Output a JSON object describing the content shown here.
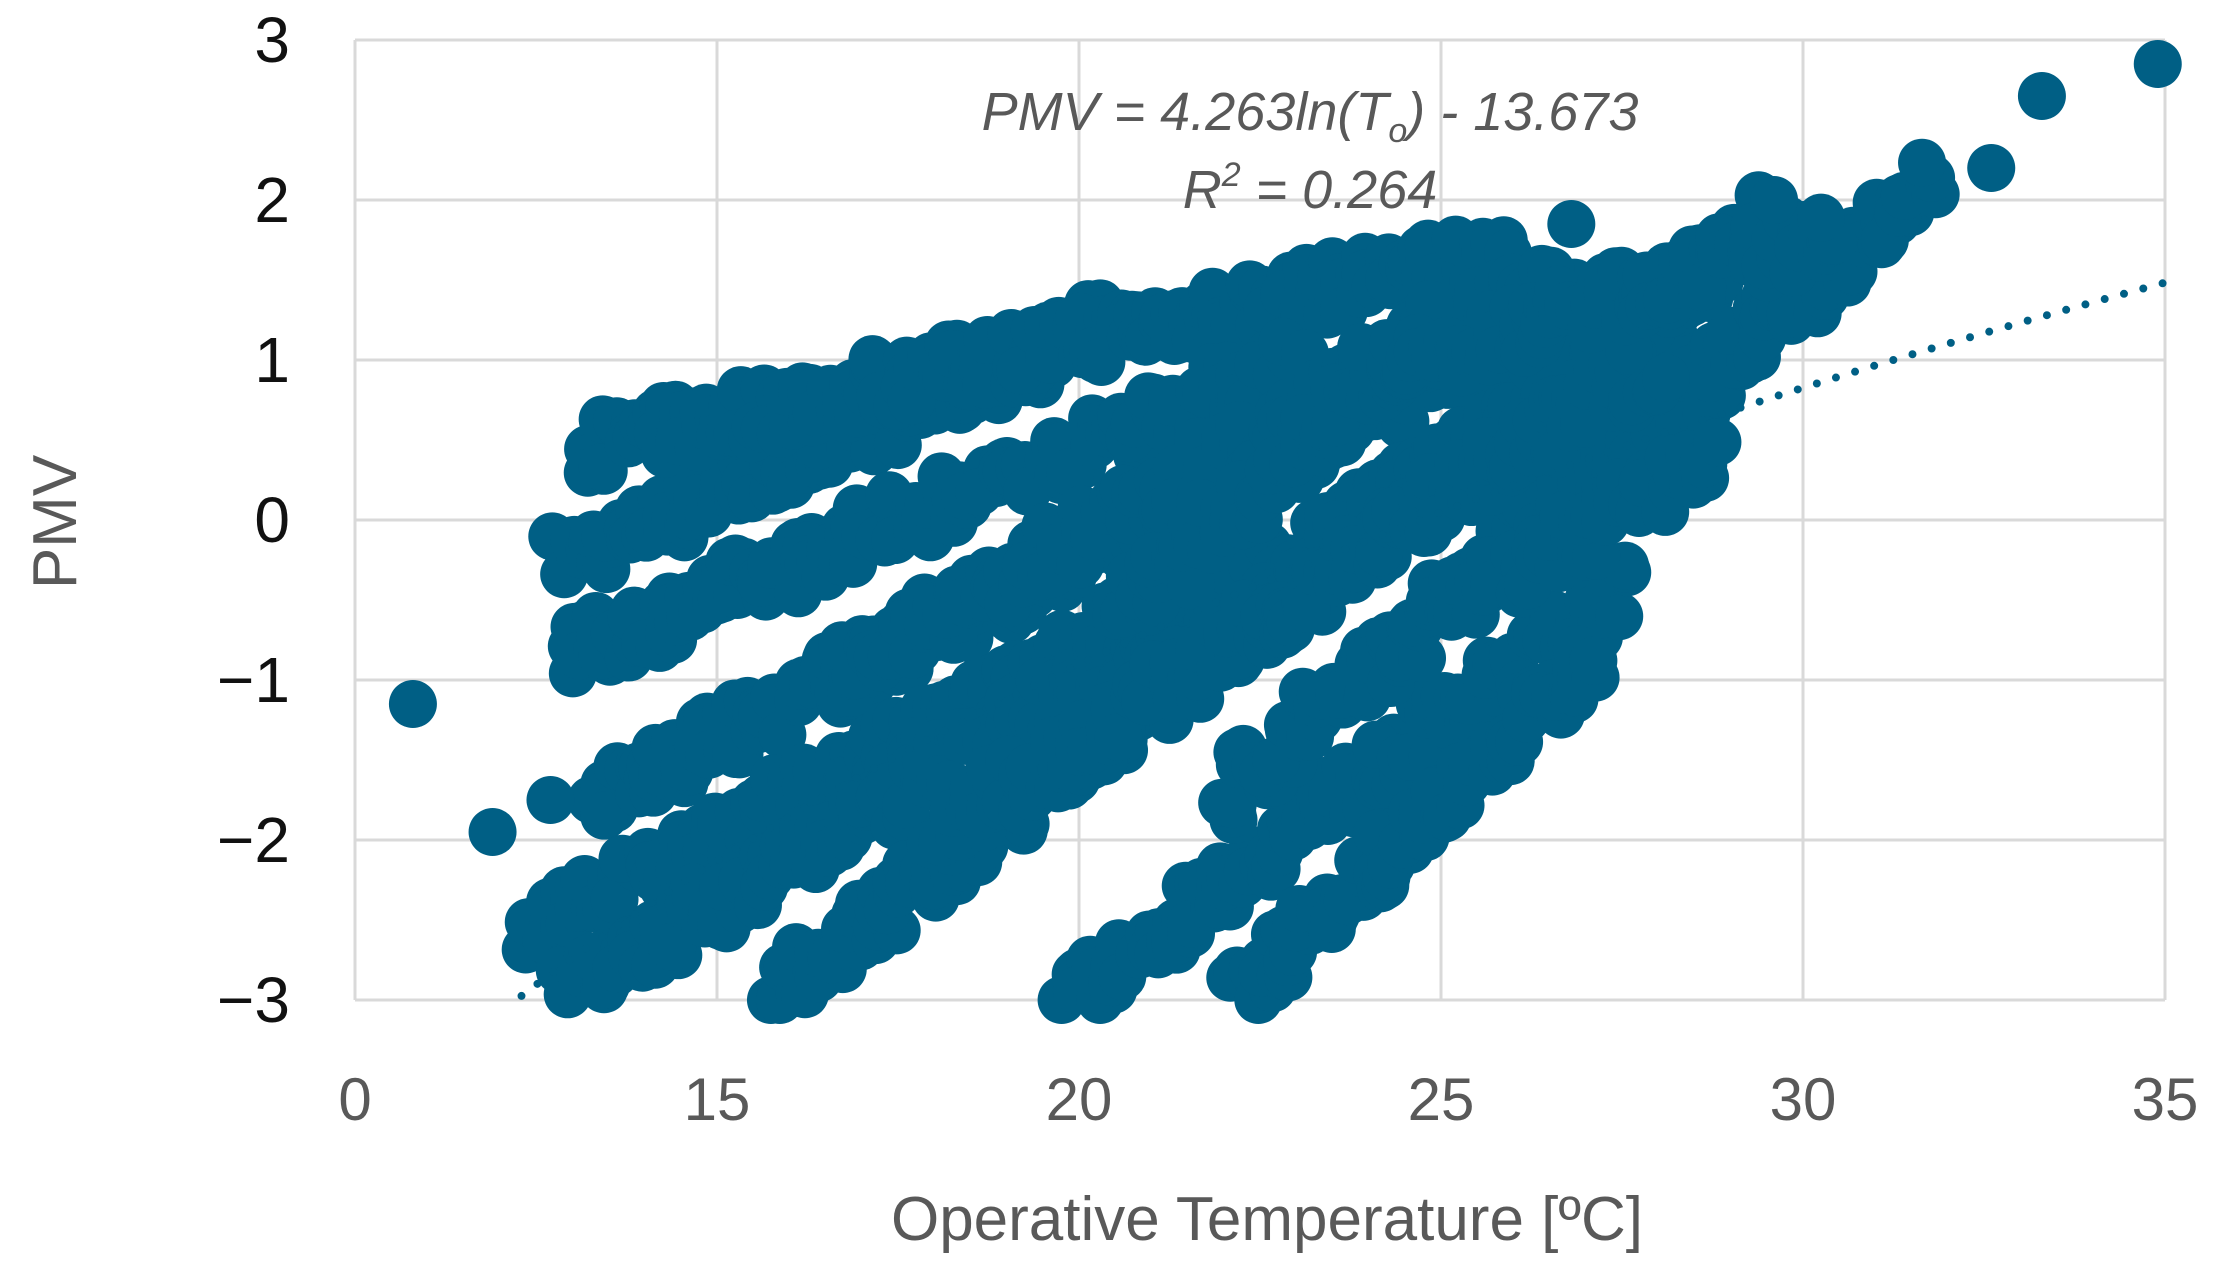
{
  "chart_data": {
    "type": "scatter",
    "xlabel": "Operative Temperature [ºC]",
    "ylabel": "PMV",
    "x_tick_labels": [
      "0",
      "15",
      "20",
      "25",
      "30",
      "35"
    ],
    "y_tick_labels": [
      "3",
      "2",
      "1",
      "0",
      "−1",
      "−2",
      "−3"
    ],
    "xlim": [
      10,
      35
    ],
    "ylim": [
      -3,
      3
    ],
    "grid": true,
    "legend": "none",
    "marker_color": "#005f85",
    "trendline": {
      "type": "logarithmic",
      "style": "dotted",
      "a": 4.263,
      "b": -13.673,
      "x_range": [
        12.2,
        35
      ]
    },
    "annotation": {
      "equation_prefix": "PMV = 4.263ln(T",
      "equation_sub": "o",
      "equation_suffix": ") - 13.673",
      "r2_prefix": "R",
      "r2_sup": "2",
      "r2_suffix": " = 0.264"
    },
    "isolated_points": [
      {
        "x": 10.8,
        "y": -1.15
      },
      {
        "x": 11.9,
        "y": -1.95
      },
      {
        "x": 12.7,
        "y": -1.75
      },
      {
        "x": 26.8,
        "y": 1.85
      },
      {
        "x": 29.6,
        "y": 2.0
      },
      {
        "x": 32.6,
        "y": 2.2
      },
      {
        "x": 33.3,
        "y": 2.65
      },
      {
        "x": 34.9,
        "y": 2.85
      }
    ],
    "bands": [
      {
        "x1": 12.9,
        "x2": 20.5,
        "y1": -0.25,
        "y2": 1.25
      },
      {
        "x1": 13.2,
        "x2": 26.0,
        "y1": 0.45,
        "y2": 1.7
      },
      {
        "x1": 12.9,
        "x2": 23.0,
        "y1": -0.85,
        "y2": 1.0
      },
      {
        "x1": 13.4,
        "x2": 27.5,
        "y1": -1.75,
        "y2": 1.5
      },
      {
        "x1": 12.5,
        "x2": 21.5,
        "y1": -2.55,
        "y2": -0.5
      },
      {
        "x1": 13.0,
        "x2": 28.5,
        "y1": -2.95,
        "y2": 1.3
      },
      {
        "x1": 15.8,
        "x2": 29.5,
        "y1": -3.0,
        "y2": 1.9
      },
      {
        "x1": 19.8,
        "x2": 27.6,
        "y1": -3.0,
        "y2": -0.4
      },
      {
        "x1": 22.2,
        "x2": 27.2,
        "y1": -3.0,
        "y2": -0.8
      },
      {
        "x1": 22.0,
        "x2": 31.8,
        "y1": -1.7,
        "y2": 2.1
      },
      {
        "x1": 16.5,
        "x2": 26.5,
        "y1": -1.0,
        "y2": 1.5
      },
      {
        "x1": 18.0,
        "x2": 28.0,
        "y1": -2.0,
        "y2": 1.0
      },
      {
        "x1": 20.5,
        "x2": 25.0,
        "y1": -0.6,
        "y2": 1.2
      },
      {
        "x1": 25.0,
        "x2": 28.7,
        "y1": -0.6,
        "y2": 0.4
      },
      {
        "x1": 24.0,
        "x2": 30.4,
        "y1": 0.9,
        "y2": 1.8
      }
    ]
  }
}
